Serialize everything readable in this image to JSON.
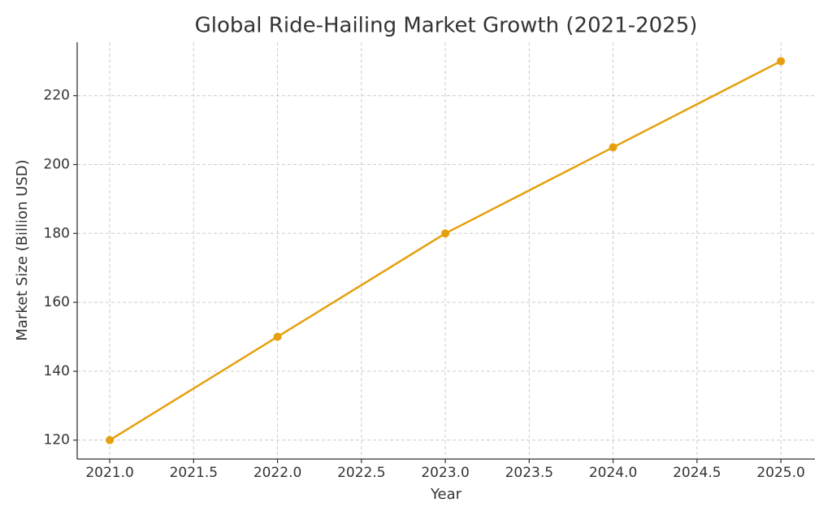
{
  "chart_data": {
    "type": "line",
    "title": "Global Ride-Hailing Market Growth (2021-2025)",
    "x_label": "Year",
    "y_label": "Market Size (Billion USD)",
    "x": [
      2021,
      2022,
      2023,
      2024,
      2025
    ],
    "series": [
      {
        "name": "Market Size",
        "color": "#e5a00d",
        "values": [
          120,
          150,
          180,
          205,
          230
        ]
      }
    ],
    "xlim": [
      2020.806,
      2025.203
    ],
    "ylim": [
      114.5,
      235.5
    ],
    "xticks": [
      {
        "value": 2021,
        "label": "2021.0"
      },
      {
        "value": 2021.5,
        "label": "2021.5"
      },
      {
        "value": 2022,
        "label": "2022.0"
      },
      {
        "value": 2022.5,
        "label": "2022.5"
      },
      {
        "value": 2023,
        "label": "2023.0"
      },
      {
        "value": 2023.5,
        "label": "2023.5"
      },
      {
        "value": 2024,
        "label": "2024.0"
      },
      {
        "value": 2024.5,
        "label": "2024.5"
      },
      {
        "value": 2025,
        "label": "2025.0"
      }
    ],
    "yticks": [
      120,
      140,
      160,
      180,
      200,
      220
    ],
    "grid": true
  }
}
